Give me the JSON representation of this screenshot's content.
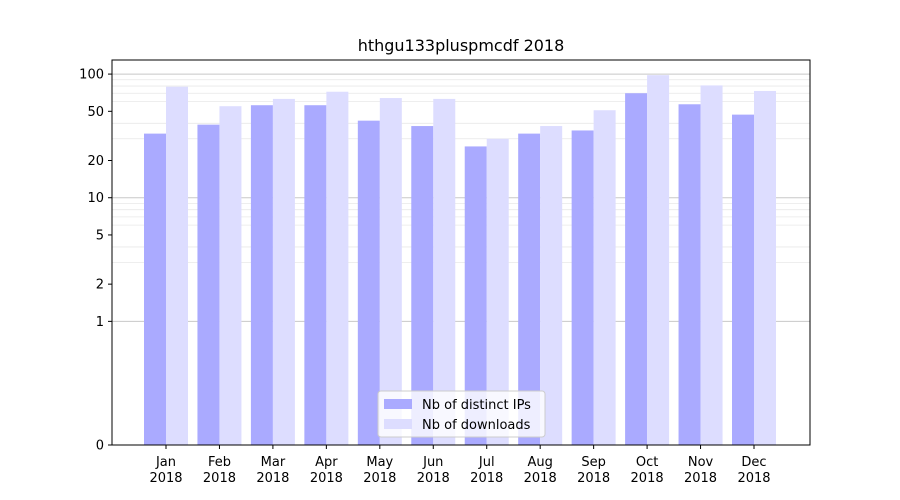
{
  "chart_data": {
    "type": "bar",
    "title": "hthgu133pluspmcdf 2018",
    "xlabel": "",
    "ylabel": "",
    "y_scale": "symlog",
    "ylim": [
      0,
      130
    ],
    "y_ticks": [
      0,
      1,
      2,
      5,
      10,
      20,
      50,
      100
    ],
    "y_tick_labels": [
      "0",
      "1",
      "2",
      "5",
      "10",
      "20",
      "50",
      "100"
    ],
    "categories": [
      "Jan\n2018",
      "Feb\n2018",
      "Mar\n2018",
      "Apr\n2018",
      "May\n2018",
      "Jun\n2018",
      "Jul\n2018",
      "Aug\n2018",
      "Sep\n2018",
      "Oct\n2018",
      "Nov\n2018",
      "Dec\n2018"
    ],
    "category_lines": [
      [
        "Jan",
        "2018"
      ],
      [
        "Feb",
        "2018"
      ],
      [
        "Mar",
        "2018"
      ],
      [
        "Apr",
        "2018"
      ],
      [
        "May",
        "2018"
      ],
      [
        "Jun",
        "2018"
      ],
      [
        "Jul",
        "2018"
      ],
      [
        "Aug",
        "2018"
      ],
      [
        "Sep",
        "2018"
      ],
      [
        "Oct",
        "2018"
      ],
      [
        "Nov",
        "2018"
      ],
      [
        "Dec",
        "2018"
      ]
    ],
    "series": [
      {
        "name": "Nb of distinct IPs",
        "color": "#aaaaff",
        "values": [
          33,
          39,
          56,
          56,
          42,
          38,
          26,
          33,
          35,
          70,
          57,
          47
        ]
      },
      {
        "name": "Nb of downloads",
        "color": "#ddddff",
        "values": [
          79,
          55,
          63,
          72,
          64,
          63,
          30,
          38,
          51,
          98,
          81,
          73
        ]
      }
    ],
    "grid": true,
    "legend_position": "bottom-center"
  }
}
